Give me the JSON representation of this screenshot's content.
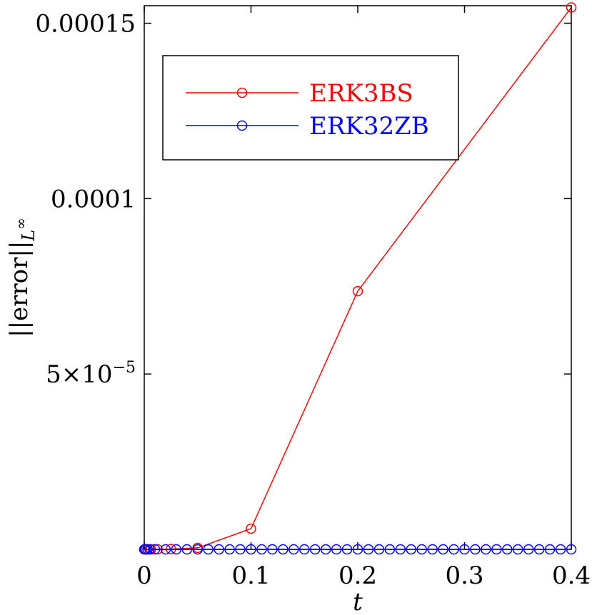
{
  "chart_data": {
    "type": "line",
    "title": "",
    "xlabel": "t",
    "ylabel": "||error||",
    "ylabel_subscript": "L",
    "ylabel_superscript": "∞",
    "xlim": [
      0,
      0.4
    ],
    "ylim": [
      0,
      0.000155
    ],
    "grid": false,
    "legend_position": "top-left",
    "x_ticks": [
      0,
      0.1,
      0.2,
      0.3,
      0.4
    ],
    "x_tick_labels": [
      "0",
      "0.1",
      "0.2",
      "0.3",
      "0.4"
    ],
    "y_ticks": [
      5e-05,
      0.0001,
      0.00015
    ],
    "y_tick_labels": [
      "5×10",
      "0.0001",
      "0.00015"
    ],
    "y_tick_label_exponent": "−5",
    "series": [
      {
        "name": "ERK3BS",
        "color": "#ff0000",
        "marker": "open-circle",
        "x": [
          0.000781,
          0.001563,
          0.003125,
          0.00625,
          0.0125,
          0.025,
          0.05,
          0.1,
          0.2,
          0.4
        ],
        "y": [
          2e-10,
          5e-10,
          1e-09,
          5e-09,
          2e-08,
          8e-08,
          4.2e-07,
          5.9e-06,
          7.36e-05,
          0.0001545
        ]
      },
      {
        "name": "ERK32ZB",
        "color": "#0000ff",
        "marker": "open-circle",
        "x": [
          0,
          0.001,
          0.003,
          0.005,
          0.01,
          0.02,
          0.03,
          0.04,
          0.05,
          0.06,
          0.07,
          0.08,
          0.09,
          0.1,
          0.11,
          0.12,
          0.13,
          0.14,
          0.15,
          0.16,
          0.17,
          0.18,
          0.19,
          0.2,
          0.21,
          0.22,
          0.23,
          0.24,
          0.25,
          0.26,
          0.27,
          0.28,
          0.29,
          0.3,
          0.31,
          0.32,
          0.33,
          0.34,
          0.35,
          0.36,
          0.37,
          0.38,
          0.39,
          0.4
        ],
        "y": [
          0,
          0,
          0,
          0,
          0,
          0,
          0,
          0,
          0,
          0,
          0,
          0,
          0,
          0,
          0,
          0,
          0,
          0,
          0,
          0,
          0,
          0,
          0,
          0,
          0,
          0,
          0,
          0,
          0,
          0,
          0,
          0,
          0,
          0,
          0,
          0,
          0,
          0,
          0,
          0,
          0,
          0,
          0,
          0
        ]
      }
    ]
  }
}
